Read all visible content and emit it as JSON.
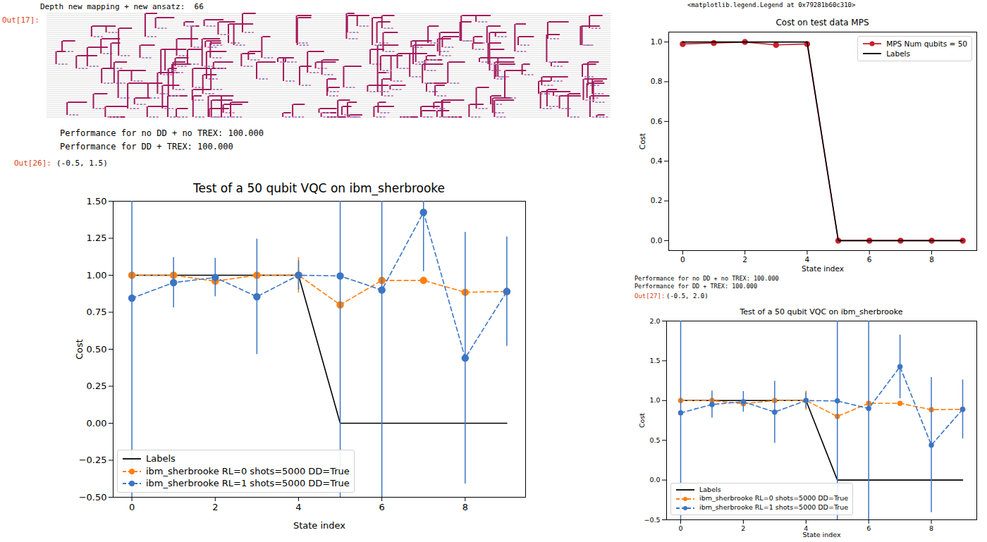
{
  "chart_data": [
    {
      "type": "line",
      "title": "Test of a 50 qubit VQC on ibm_sherbrooke",
      "x_label": "State index",
      "y_label": "Cost",
      "x": [
        0,
        1,
        2,
        3,
        4,
        5,
        6,
        7,
        8,
        9
      ],
      "xlim": [
        -0.45,
        9.45
      ],
      "xticks": [
        0,
        2,
        4,
        6,
        8
      ],
      "ylim": [
        -0.5,
        1.5
      ],
      "yticks": [
        {
          "value": -0.5,
          "label": "−0.50"
        },
        {
          "value": -0.25,
          "label": "−0.25"
        },
        {
          "value": 0,
          "label": "0.00"
        },
        {
          "value": 0.25,
          "label": "0.25"
        },
        {
          "value": 0.5,
          "label": "0.50"
        },
        {
          "value": 0.75,
          "label": "0.75"
        },
        {
          "value": 1,
          "label": "1.00"
        },
        {
          "value": 1.25,
          "label": "1.25"
        },
        {
          "value": 1.5,
          "label": "1.50"
        }
      ],
      "grid": false,
      "legend": "lower left",
      "series": [
        {
          "name": "Labels",
          "color": "#000000",
          "marker": "none",
          "line_style": "solid",
          "values": [
            1,
            1,
            1,
            1,
            1,
            0,
            0,
            0,
            0,
            0
          ]
        },
        {
          "name": "ibm_sherbrooke RL=0 shots=5000 DD=True",
          "color": "#ff7f0e",
          "marker": "o",
          "line_style": "dashed",
          "values": [
            1.0,
            1.0,
            0.96,
            1.0,
            1.0,
            0.8,
            0.965,
            0.965,
            0.885,
            0.89
          ],
          "errors": [
            0.01,
            0.01,
            0.02,
            0.01,
            0.12,
            0.01,
            0.01,
            0.01,
            0.01,
            0.01
          ]
        },
        {
          "name": "ibm_sherbrooke RL=1 shots=5000 DD=True",
          "color": "#3b75c4",
          "marker": "o",
          "line_style": "dashed",
          "values": [
            0.845,
            0.95,
            0.985,
            0.855,
            1.0,
            0.995,
            0.9,
            1.425,
            0.44,
            0.89
          ],
          "errors": [
            1.7,
            0.17,
            0.13,
            0.39,
            0.1,
            2.0,
            1.5,
            0.4,
            0.85,
            0.37
          ]
        }
      ]
    },
    {
      "type": "line",
      "title": "Cost on test data MPS",
      "x_label": "State index",
      "y_label": "Cost",
      "x": [
        0,
        1,
        2,
        3,
        4,
        5,
        6,
        7,
        8,
        9
      ],
      "xlim": [
        -0.45,
        9.45
      ],
      "xticks": [
        0,
        2,
        4,
        6,
        8
      ],
      "ylim": [
        -0.05,
        1.05
      ],
      "yticks": [
        {
          "value": 0,
          "label": "0.0"
        },
        0.2,
        0.4,
        0.6,
        0.8,
        {
          "value": 1,
          "label": "1.0"
        }
      ],
      "grid": false,
      "legend": "upper right",
      "series": [
        {
          "name": "MPS Num qubits = 50",
          "color": "#c9202f",
          "marker": "o",
          "line_style": "solid",
          "values": [
            0.99,
            0.995,
            1.0,
            0.985,
            0.99,
            0,
            0,
            0,
            0,
            0
          ]
        },
        {
          "name": "Labels",
          "color": "#000000",
          "marker": "none",
          "line_style": "solid",
          "values": [
            1,
            1,
            1,
            1,
            1,
            0,
            0,
            0,
            0,
            0
          ]
        }
      ]
    },
    {
      "type": "line",
      "title": "Test of a 50 qubit VQC on ibm_sherbrooke",
      "x_label": "State index",
      "y_label": "Cost",
      "x": [
        0,
        1,
        2,
        3,
        4,
        5,
        6,
        7,
        8,
        9
      ],
      "xlim": [
        -0.45,
        9.45
      ],
      "xticks": [
        0,
        2,
        4,
        6,
        8
      ],
      "ylim": [
        -0.5,
        2.0
      ],
      "yticks": [
        {
          "value": -0.5,
          "label": "−0.5"
        },
        {
          "value": 0,
          "label": "0.0"
        },
        0.5,
        {
          "value": 1,
          "label": "1.0"
        },
        1.5,
        {
          "value": 2,
          "label": "2.0"
        }
      ],
      "grid": false,
      "legend": "lower left",
      "series": [
        {
          "name": "Labels",
          "color": "#000000",
          "marker": "none",
          "line_style": "solid",
          "values": [
            1,
            1,
            1,
            1,
            1,
            0,
            0,
            0,
            0,
            0
          ]
        },
        {
          "name": "ibm_sherbrooke RL=0 shots=5000 DD=True",
          "color": "#ff7f0e",
          "marker": "o",
          "line_style": "dashed",
          "values": [
            1.0,
            1.0,
            0.96,
            1.0,
            1.0,
            0.8,
            0.965,
            0.965,
            0.885,
            0.89
          ],
          "errors": [
            0.01,
            0.01,
            0.02,
            0.01,
            0.12,
            0.01,
            0.01,
            0.01,
            0.01,
            0.01
          ]
        },
        {
          "name": "ibm_sherbrooke RL=1 shots=5000 DD=True",
          "color": "#3b75c4",
          "marker": "o",
          "line_style": "dashed",
          "values": [
            0.845,
            0.95,
            0.985,
            0.855,
            1.0,
            0.995,
            0.9,
            1.425,
            0.44,
            0.89
          ],
          "errors": [
            1.7,
            0.17,
            0.13,
            0.39,
            0.1,
            2.0,
            1.5,
            0.4,
            0.85,
            0.37
          ]
        }
      ]
    }
  ],
  "notebook": {
    "circuit_output": {
      "header": "Depth new mapping + new ansatz:  66",
      "prompt": "Out[17]:"
    },
    "left_output": {
      "lines": [
        "Performance for no DD + no TREX: 100.000",
        "Performance for DD + TREX: 100.000"
      ],
      "prompt": "Out[26]:",
      "result": "(-0.5, 1.5)"
    },
    "legend_repr": "<matplotlib.legend.Legend at 0x79281b60c310>",
    "right_output": {
      "lines": [
        "Performance for no DD + no TREX: 100.000",
        "Performance for DD + TREX: 100.000"
      ],
      "prompt": "Out[27]:",
      "result": "(-0.5, 2.0)"
    }
  }
}
